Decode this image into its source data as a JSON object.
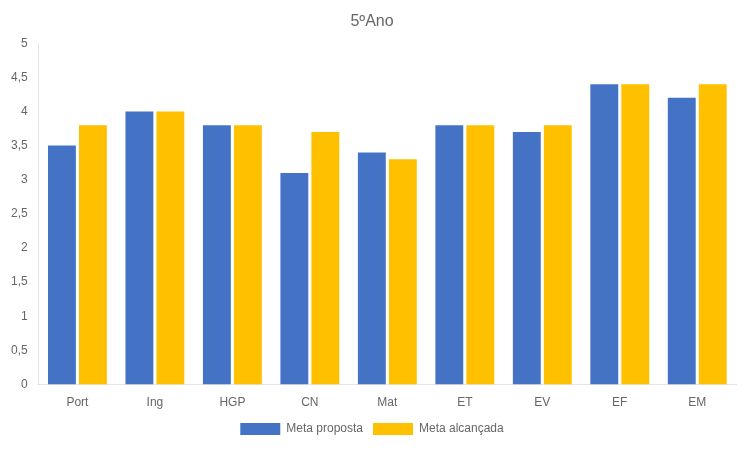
{
  "chart_data": {
    "type": "bar",
    "title": "5ºAno",
    "categories": [
      "Port",
      "Ing",
      "HGP",
      "CN",
      "Mat",
      "ET",
      "EV",
      "EF",
      "EM"
    ],
    "series": [
      {
        "name": "Meta proposta",
        "color": "#4472C4",
        "values": [
          3.5,
          4.0,
          3.8,
          3.1,
          3.4,
          3.8,
          3.7,
          4.4,
          4.2
        ]
      },
      {
        "name": "Meta alcançada",
        "color": "#FFC000",
        "values": [
          3.8,
          4.0,
          3.8,
          3.7,
          3.3,
          3.8,
          3.8,
          4.4,
          4.4
        ]
      }
    ],
    "ylim": [
      0,
      5
    ],
    "yticks": [
      0,
      {
        "value": 0.5,
        "label": "0,5"
      },
      1,
      {
        "value": 1.5,
        "label": "1,5"
      },
      2,
      {
        "value": 2.5,
        "label": "2,5"
      },
      3,
      {
        "value": 3.5,
        "label": "3,5"
      },
      4,
      {
        "value": 4.5,
        "label": "4,5"
      },
      5
    ],
    "grid": false,
    "legend": "bottom"
  }
}
